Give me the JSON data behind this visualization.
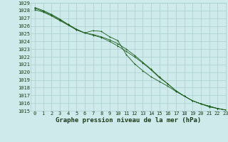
{
  "title": "Graphe pression niveau de la mer (hPa)",
  "xlim": [
    -0.5,
    23
  ],
  "ylim": [
    1015,
    1029
  ],
  "yticks": [
    1015,
    1016,
    1017,
    1018,
    1019,
    1020,
    1021,
    1022,
    1023,
    1024,
    1025,
    1026,
    1027,
    1028,
    1029
  ],
  "xticks": [
    0,
    1,
    2,
    3,
    4,
    5,
    6,
    7,
    8,
    9,
    10,
    11,
    12,
    13,
    14,
    15,
    16,
    17,
    18,
    19,
    20,
    21,
    22,
    23
  ],
  "background_color": "#ceeaea",
  "grid_color": "#aacece",
  "line_color": "#1a5c1a",
  "series": [
    [
      1028.1,
      1027.8,
      1027.3,
      1026.7,
      1026.1,
      1025.5,
      1025.1,
      1024.9,
      1024.6,
      1024.2,
      1023.7,
      1023.0,
      1022.2,
      1021.3,
      1020.4,
      1019.4,
      1018.5,
      1017.6,
      1016.9,
      1016.3,
      1015.9,
      1015.6,
      1015.3,
      1015.1
    ],
    [
      1028.3,
      1027.9,
      1027.4,
      1026.8,
      1026.2,
      1025.5,
      1025.1,
      1025.4,
      1025.3,
      1024.6,
      1024.1,
      1022.3,
      1021.1,
      1020.2,
      1019.4,
      1018.8,
      1018.2,
      1017.5,
      1016.9,
      1016.3,
      1015.9,
      1015.6,
      1015.3,
      1015.1
    ],
    [
      1028.4,
      1028.0,
      1027.5,
      1026.9,
      1026.2,
      1025.6,
      1025.1,
      1024.8,
      1024.5,
      1024.0,
      1023.4,
      1022.7,
      1022.0,
      1021.2,
      1020.3,
      1019.3,
      1018.5,
      1017.6,
      1016.9,
      1016.3,
      1015.9,
      1015.5,
      1015.3,
      1015.1
    ]
  ],
  "title_fontsize": 6.5,
  "tick_fontsize": 5,
  "fig_width": 3.2,
  "fig_height": 2.0,
  "dpi": 100
}
